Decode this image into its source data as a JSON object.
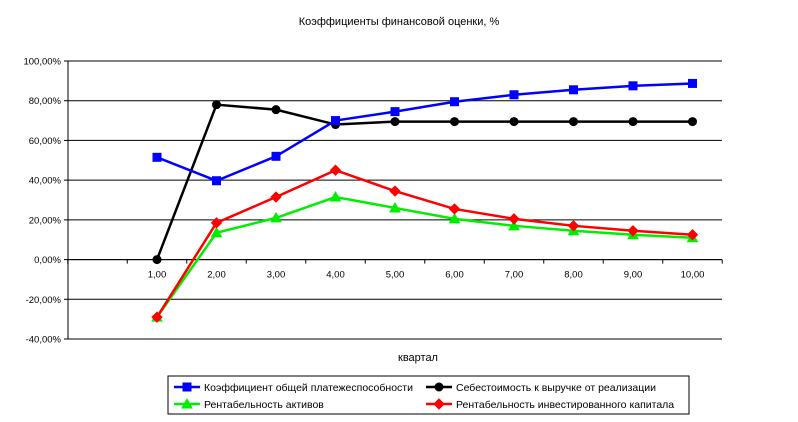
{
  "chart_data": {
    "type": "line",
    "title": "Коэффициенты финансовой оценки, %",
    "xlabel": "квартал",
    "ylabel": "",
    "x": [
      1,
      2,
      3,
      4,
      5,
      6,
      7,
      8,
      9,
      10
    ],
    "x_tick_labels": [
      "1,00",
      "2,00",
      "3,00",
      "4,00",
      "5,00",
      "6,00",
      "7,00",
      "8,00",
      "9,00",
      "10,00"
    ],
    "ylim": [
      -40,
      100
    ],
    "y_ticks": [
      -40,
      -20,
      0,
      20,
      40,
      60,
      80,
      100
    ],
    "y_tick_labels": [
      "-40,00%",
      "-20,00%",
      "0,00%",
      "20,00%",
      "40,00%",
      "60,00%",
      "80,00%",
      "100,00%"
    ],
    "grid": "horizontal",
    "legend_position": "bottom",
    "series": [
      {
        "name": "Коэффициент общей платежеспособности",
        "color": "#0000ff",
        "marker": "square",
        "values": [
          51.5,
          39.7,
          52,
          70,
          74.5,
          79.5,
          83,
          85.5,
          87.5,
          88.7
        ]
      },
      {
        "name": "Себестоимость к выручке от реализации",
        "color": "#000000",
        "marker": "circle",
        "values": [
          0,
          78,
          75.5,
          68,
          69.5,
          69.5,
          69.5,
          69.5,
          69.5,
          69.5
        ]
      },
      {
        "name": "Рентабельность активов",
        "color": "#00ee00",
        "marker": "triangle",
        "values": [
          -29,
          13.5,
          21,
          31.5,
          26,
          20.5,
          17,
          14.5,
          12.5,
          11
        ]
      },
      {
        "name": "Рентабельность инвестированного капитала",
        "color": "#ff0000",
        "marker": "diamond",
        "values": [
          -29,
          18.5,
          31.5,
          45,
          34.5,
          25.5,
          20.5,
          17,
          14.5,
          12.5
        ]
      }
    ]
  }
}
